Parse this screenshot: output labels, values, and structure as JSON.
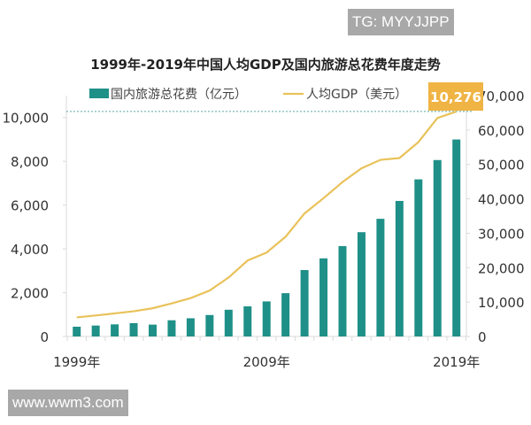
{
  "watermarks": {
    "top": "TG: MYYJJPP",
    "bottom": "www.wwm3.com"
  },
  "chart_data": {
    "type": "bar+line",
    "title": "1999年-2019年中国人均GDP及国内旅游总花费年度走势",
    "x": [
      1999,
      2000,
      2001,
      2002,
      2003,
      2004,
      2005,
      2006,
      2007,
      2008,
      2009,
      2010,
      2011,
      2012,
      2013,
      2014,
      2015,
      2016,
      2017,
      2018,
      2019
    ],
    "x_tick_labels": [
      "1999年",
      "2009年",
      "2019年"
    ],
    "series": [
      {
        "name": "国内旅游总花费（亿元）",
        "type": "bar",
        "axis": "right",
        "color": "#1f9088",
        "values": [
          2832,
          3176,
          3522,
          3878,
          3442,
          4711,
          5286,
          6230,
          7771,
          8749,
          10184,
          12580,
          19305,
          22706,
          26276,
          30312,
          34195,
          39390,
          45661,
          51278,
          57251
        ]
      },
      {
        "name": "人均GDP（美元）",
        "type": "line",
        "axis": "left",
        "color": "#e9c25a",
        "values": [
          873,
          959,
          1053,
          1149,
          1289,
          1509,
          1753,
          2099,
          2694,
          3468,
          3832,
          4550,
          5618,
          6317,
          7051,
          7679,
          8067,
          8148,
          8879,
          9977,
          10276
        ]
      }
    ],
    "left_axis": {
      "ylim": [
        0,
        11000
      ],
      "ticks": [
        "0",
        "2,000",
        "4,000",
        "6,000",
        "8,000",
        "10,000"
      ],
      "tick_values": [
        0,
        2000,
        4000,
        6000,
        8000,
        10000
      ]
    },
    "right_axis": {
      "ylim": [
        0,
        70000
      ],
      "ticks": [
        "0",
        "10,000",
        "20,000",
        "30,000",
        "40,000",
        "50,000",
        "60,000",
        "70,000"
      ],
      "tick_values": [
        0,
        10000,
        20000,
        30000,
        40000,
        50000,
        60000,
        70000
      ]
    },
    "annotation": {
      "label": "10,276",
      "value": 10276,
      "color": "#f0b444"
    },
    "legend_placement": "top",
    "grid": false
  }
}
